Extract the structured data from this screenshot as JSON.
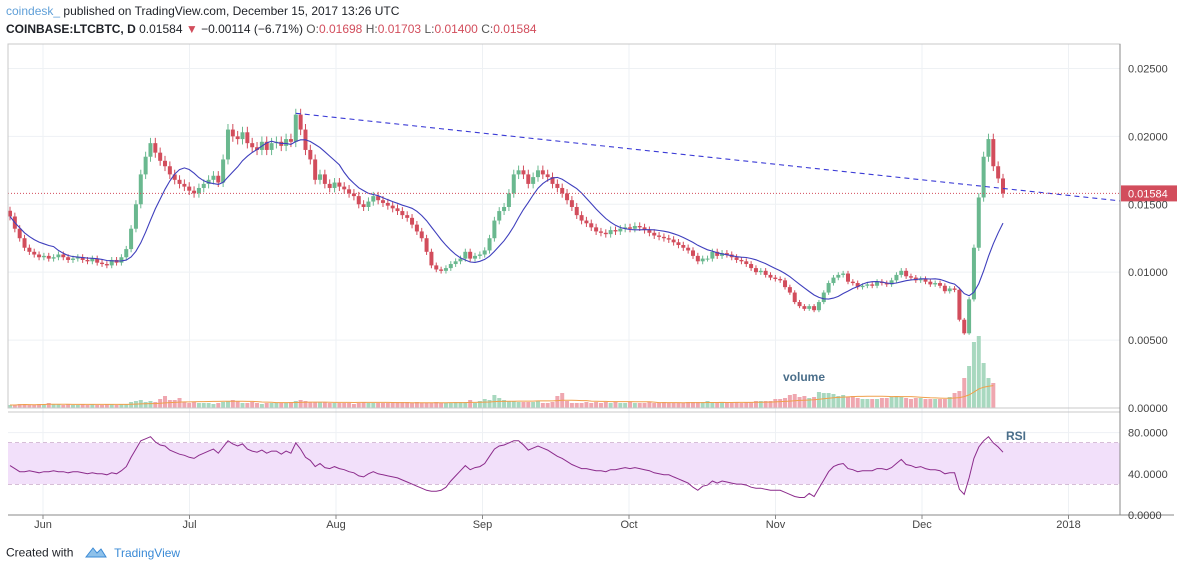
{
  "header": {
    "publisher": "coindesk_",
    "published_text": "published on TradingView.com, December 15, 2017 13:26 UTC",
    "symbol": "COINBASE:LTCBTC, D",
    "last": "0.01584",
    "change": "−0.00114 (−6.71%)",
    "o_label": "O:",
    "o_value": "0.01698",
    "h_label": "H:",
    "h_value": "0.01703",
    "l_label": "L:",
    "l_value": "0.01400",
    "c_label": "C:",
    "c_value": "0.01584"
  },
  "footer": {
    "created_with": "Created with",
    "brand": "TradingView"
  },
  "colors": {
    "up": "#6ab88f",
    "down": "#d24d5c",
    "ma": "#3f3fbd",
    "trend": "#3b3bd6",
    "rsi": "#8c2c8c",
    "rsi_band": "#f2e0fa",
    "price_line": "#d24d5c",
    "volume_ma": "#f0a04b"
  },
  "chart_data": [
    {
      "type": "candlestick",
      "title": "",
      "x_ticks": [
        "Jun",
        "Jul",
        "Aug",
        "Sep",
        "Oct",
        "Nov",
        "Dec",
        "2018"
      ],
      "y_ticks": [
        "0.02500",
        "0.02000",
        "0.01500",
        "0.01000",
        "0.00500",
        "0.00000"
      ],
      "ylim": [
        0.0,
        0.0268
      ],
      "last_price_label": "0.01584",
      "grid": true,
      "closes": [
        0.0141,
        0.0132,
        0.0125,
        0.0118,
        0.0115,
        0.0113,
        0.0111,
        0.0112,
        0.011,
        0.0111,
        0.0113,
        0.0111,
        0.0109,
        0.011,
        0.0111,
        0.0109,
        0.0108,
        0.011,
        0.0107,
        0.0106,
        0.0105,
        0.0109,
        0.0107,
        0.0111,
        0.0117,
        0.0132,
        0.015,
        0.0172,
        0.0185,
        0.0195,
        0.0188,
        0.0182,
        0.0178,
        0.0172,
        0.0168,
        0.0165,
        0.0163,
        0.016,
        0.0158,
        0.0162,
        0.0165,
        0.0168,
        0.0171,
        0.0166,
        0.0183,
        0.0205,
        0.02,
        0.0198,
        0.0203,
        0.0195,
        0.0192,
        0.019,
        0.0196,
        0.019,
        0.0195,
        0.0196,
        0.0193,
        0.0198,
        0.0196,
        0.0216,
        0.0205,
        0.019,
        0.0183,
        0.0168,
        0.0172,
        0.0165,
        0.0162,
        0.0166,
        0.0163,
        0.0161,
        0.0158,
        0.0156,
        0.015,
        0.0148,
        0.0152,
        0.0156,
        0.0153,
        0.0151,
        0.0149,
        0.0147,
        0.0145,
        0.0142,
        0.014,
        0.0135,
        0.013,
        0.0125,
        0.0115,
        0.0105,
        0.0102,
        0.0101,
        0.0103,
        0.0106,
        0.0108,
        0.011,
        0.0115,
        0.011,
        0.0112,
        0.0113,
        0.0116,
        0.0125,
        0.0138,
        0.0145,
        0.0148,
        0.0158,
        0.0172,
        0.0175,
        0.0172,
        0.0165,
        0.017,
        0.0175,
        0.0172,
        0.017,
        0.0165,
        0.0162,
        0.0158,
        0.0153,
        0.0148,
        0.0142,
        0.0138,
        0.0136,
        0.0133,
        0.013,
        0.0129,
        0.0128,
        0.0131,
        0.013,
        0.0132,
        0.0133,
        0.0132,
        0.0134,
        0.0133,
        0.0131,
        0.0129,
        0.0127,
        0.0126,
        0.0125,
        0.0124,
        0.0122,
        0.012,
        0.0118,
        0.0116,
        0.0112,
        0.0108,
        0.011,
        0.011,
        0.0115,
        0.0112,
        0.0114,
        0.0113,
        0.0111,
        0.0109,
        0.0108,
        0.0106,
        0.0103,
        0.01,
        0.0101,
        0.0098,
        0.0096,
        0.0095,
        0.0094,
        0.0089,
        0.0085,
        0.0078,
        0.0075,
        0.0073,
        0.0075,
        0.0072,
        0.0078,
        0.0085,
        0.0092,
        0.0096,
        0.0098,
        0.0099,
        0.0093,
        0.0092,
        0.0089,
        0.009,
        0.0091,
        0.009,
        0.0093,
        0.0092,
        0.0091,
        0.0094,
        0.0098,
        0.0101,
        0.0097,
        0.0096,
        0.0094,
        0.0095,
        0.0093,
        0.0091,
        0.0092,
        0.009,
        0.0086,
        0.0088,
        0.0087,
        0.0065,
        0.0055,
        0.008,
        0.0118,
        0.0155,
        0.0185,
        0.0198,
        0.0178,
        0.0169,
        0.0158
      ]
    },
    {
      "type": "bar",
      "title": "volume",
      "values": [
        3,
        3,
        4,
        4,
        3,
        3,
        4,
        4,
        5,
        4,
        4,
        3,
        4,
        3,
        3,
        4,
        3,
        4,
        3,
        3,
        4,
        4,
        3,
        4,
        4,
        6,
        7,
        8,
        6,
        7,
        6,
        9,
        12,
        8,
        8,
        10,
        6,
        5,
        6,
        5,
        5,
        5,
        4,
        5,
        6,
        7,
        8,
        7,
        5,
        5,
        6,
        5,
        4,
        5,
        5,
        5,
        5,
        5,
        6,
        7,
        8,
        7,
        6,
        6,
        6,
        6,
        5,
        5,
        5,
        5,
        5,
        4,
        5,
        6,
        5,
        5,
        5,
        5,
        5,
        6,
        6,
        6,
        6,
        5,
        6,
        5,
        5,
        5,
        6,
        5,
        5,
        5,
        6,
        6,
        6,
        8,
        5,
        7,
        9,
        8,
        13,
        10,
        8,
        7,
        7,
        6,
        6,
        6,
        6,
        7,
        5,
        5,
        6,
        12,
        15,
        7,
        5,
        5,
        5,
        6,
        5,
        6,
        5,
        6,
        5,
        6,
        5,
        5,
        6,
        5,
        5,
        5,
        6,
        5,
        5,
        6,
        5,
        5,
        5,
        5,
        6,
        6,
        6,
        6,
        7,
        6,
        5,
        6,
        5,
        5,
        6,
        5,
        6,
        6,
        7,
        7,
        7,
        7,
        9,
        9,
        10,
        13,
        14,
        11,
        12,
        10,
        11,
        16,
        15,
        15,
        14,
        12,
        13,
        11,
        12,
        10,
        9,
        9,
        9,
        9,
        10,
        10,
        11,
        12,
        11,
        10,
        9,
        10,
        10,
        9,
        9,
        9,
        9,
        9,
        11,
        15,
        17,
        30,
        42,
        66,
        72,
        45,
        30,
        25
      ]
    },
    {
      "type": "line",
      "title": "RSI",
      "y_ticks": [
        "80.0000",
        "40.0000",
        "0.0000"
      ],
      "ylim": [
        0,
        100
      ],
      "values": [
        48,
        45,
        42,
        42,
        43,
        42,
        41,
        42,
        42,
        43,
        42,
        42,
        41,
        42,
        42,
        41,
        40,
        41,
        40,
        40,
        39,
        41,
        40,
        43,
        47,
        56,
        64,
        72,
        74,
        76,
        71,
        68,
        67,
        63,
        61,
        59,
        58,
        56,
        55,
        58,
        60,
        62,
        64,
        60,
        66,
        72,
        69,
        67,
        69,
        64,
        62,
        61,
        63,
        60,
        62,
        62,
        59,
        62,
        60,
        70,
        64,
        56,
        53,
        47,
        50,
        46,
        45,
        47,
        45,
        44,
        42,
        41,
        38,
        37,
        40,
        42,
        40,
        39,
        38,
        37,
        36,
        34,
        32,
        30,
        28,
        26,
        24,
        23,
        23,
        24,
        27,
        33,
        38,
        43,
        48,
        44,
        46,
        47,
        50,
        57,
        64,
        67,
        68,
        70,
        72,
        72,
        68,
        63,
        65,
        67,
        65,
        63,
        60,
        57,
        55,
        52,
        49,
        47,
        45,
        45,
        44,
        43,
        43,
        42,
        44,
        44,
        45,
        46,
        45,
        46,
        45,
        44,
        43,
        41,
        40,
        39,
        39,
        37,
        35,
        33,
        31,
        27,
        24,
        28,
        29,
        33,
        31,
        33,
        32,
        31,
        30,
        30,
        29,
        27,
        26,
        26,
        25,
        24,
        24,
        24,
        22,
        20,
        18,
        17,
        17,
        21,
        18,
        26,
        34,
        42,
        47,
        49,
        50,
        45,
        44,
        42,
        43,
        43,
        43,
        45,
        45,
        44,
        46,
        50,
        54,
        49,
        48,
        46,
        47,
        45,
        44,
        44,
        43,
        40,
        41,
        41,
        25,
        20,
        36,
        55,
        66,
        72,
        76,
        70,
        66,
        61
      ]
    }
  ]
}
